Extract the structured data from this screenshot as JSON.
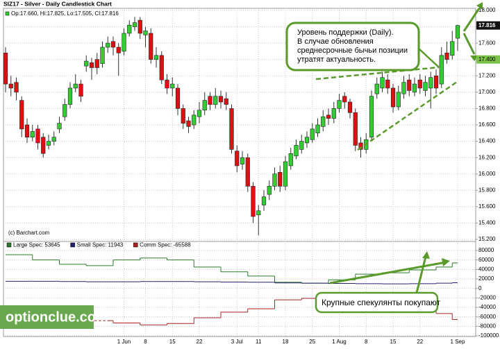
{
  "chart_data": [
    {
      "type": "candlestick",
      "title": "SIZ17 - Silver - Daily Candlestick Chart",
      "subtitle": "Op:17.660, Hi:17.825, Lo:17.505, Cl:17.816",
      "source": "(c) Barchart.com",
      "categories": [
        null,
        null,
        null,
        null,
        null,
        null,
        null,
        null,
        null,
        null,
        null,
        null,
        null,
        null,
        null,
        null,
        null,
        null,
        null,
        null,
        null,
        null,
        "1 Jun",
        null,
        null,
        null,
        "8",
        null,
        null,
        null,
        null,
        "15",
        null,
        null,
        null,
        null,
        "22",
        null,
        null,
        null,
        null,
        null,
        null,
        "3 Jul",
        null,
        null,
        null,
        "11",
        null,
        null,
        null,
        null,
        "18",
        null,
        null,
        null,
        null,
        "25",
        null,
        null,
        null,
        null,
        "1 Aug",
        null,
        null,
        null,
        null,
        "8",
        null,
        null,
        null,
        null,
        "15",
        null,
        null,
        null,
        null,
        "22",
        null,
        null,
        null,
        null,
        null,
        null,
        "1 Sep"
      ],
      "open": [
        17.48,
        17.1,
        17.12,
        16.9,
        16.6,
        16.45,
        16.55,
        16.45,
        16.35,
        16.4,
        16.55,
        16.7,
        16.85,
        17.05,
        17.1,
        17.32,
        17.36,
        17.4,
        17.35,
        17.55,
        17.62,
        17.55,
        17.5,
        17.72,
        17.8,
        17.88,
        17.7,
        17.72,
        17.4,
        17.45,
        17.15,
        17.05,
        17.05,
        16.8,
        16.65,
        16.6,
        16.7,
        16.78,
        16.95,
        16.85,
        16.95,
        16.92,
        16.8,
        16.28,
        16.12,
        16.2,
        15.85,
        15.5,
        15.62,
        15.75,
        15.85,
        16.02,
        15.85,
        16.1,
        16.22,
        16.3,
        16.38,
        16.42,
        16.5,
        16.58,
        16.72,
        16.68,
        16.8,
        16.95,
        16.88,
        16.75,
        16.38,
        16.3,
        16.45,
        16.98,
        17.05,
        17.15,
        17.05,
        16.82,
        16.98,
        17.15,
        17.0,
        17.15,
        17.02,
        17.05,
        17.2,
        17.1,
        17.48,
        17.45,
        17.66
      ],
      "high": [
        17.55,
        17.2,
        17.18,
        16.95,
        16.68,
        16.6,
        16.6,
        16.5,
        16.48,
        16.52,
        16.7,
        16.92,
        17.12,
        17.22,
        17.15,
        17.45,
        17.42,
        17.48,
        17.62,
        17.68,
        17.68,
        17.6,
        17.78,
        17.88,
        17.92,
        17.92,
        17.8,
        17.78,
        17.55,
        17.5,
        17.22,
        17.18,
        17.1,
        16.85,
        16.7,
        16.78,
        16.88,
        17.0,
        17.0,
        17.05,
        17.02,
        17.0,
        16.85,
        16.35,
        16.28,
        16.25,
        15.9,
        15.62,
        15.8,
        15.92,
        16.08,
        16.1,
        16.22,
        16.32,
        16.42,
        16.48,
        16.52,
        16.62,
        16.68,
        16.78,
        16.8,
        16.88,
        16.98,
        17.0,
        16.92,
        16.8,
        16.45,
        16.5,
        17.02,
        17.18,
        17.25,
        17.22,
        17.1,
        17.08,
        17.2,
        17.22,
        17.18,
        17.22,
        17.2,
        17.25,
        17.28,
        17.55,
        17.62,
        17.75,
        17.825
      ],
      "low": [
        17.0,
        16.95,
        16.9,
        16.45,
        16.38,
        16.4,
        16.3,
        16.2,
        16.3,
        16.35,
        16.5,
        16.65,
        16.8,
        17.0,
        16.88,
        17.25,
        17.15,
        17.22,
        17.3,
        17.48,
        17.45,
        17.2,
        17.45,
        17.68,
        17.75,
        17.65,
        17.55,
        17.35,
        17.3,
        17.1,
        16.98,
        16.95,
        16.72,
        16.55,
        16.5,
        16.55,
        16.62,
        16.72,
        16.78,
        16.8,
        16.8,
        16.78,
        16.25,
        16.02,
        16.05,
        15.78,
        15.4,
        15.25,
        15.55,
        15.68,
        15.8,
        15.78,
        15.8,
        16.05,
        16.18,
        16.25,
        16.32,
        16.38,
        16.45,
        16.52,
        16.6,
        16.62,
        16.75,
        16.8,
        16.68,
        16.28,
        16.2,
        16.25,
        16.4,
        16.92,
        17.0,
        16.98,
        16.75,
        16.78,
        16.92,
        16.95,
        16.95,
        16.98,
        16.95,
        16.8,
        16.98,
        17.05,
        17.35,
        17.4,
        17.505
      ],
      "close": [
        17.1,
        17.05,
        17.0,
        16.55,
        16.45,
        16.52,
        16.38,
        16.25,
        16.4,
        16.45,
        16.62,
        16.85,
        17.05,
        17.1,
        16.95,
        17.38,
        17.3,
        17.3,
        17.55,
        17.6,
        17.55,
        17.48,
        17.72,
        17.82,
        17.85,
        17.72,
        17.75,
        17.4,
        17.45,
        17.15,
        17.05,
        17.1,
        16.8,
        16.62,
        16.58,
        16.72,
        16.78,
        16.9,
        16.85,
        16.95,
        16.88,
        16.85,
        16.3,
        16.1,
        16.2,
        15.85,
        15.48,
        15.55,
        15.72,
        15.85,
        16.0,
        15.85,
        16.15,
        16.25,
        16.35,
        16.4,
        16.45,
        16.55,
        16.6,
        16.7,
        16.68,
        16.8,
        16.9,
        16.88,
        16.75,
        16.35,
        16.3,
        16.42,
        16.95,
        17.1,
        17.18,
        17.05,
        16.82,
        17.0,
        17.12,
        17.02,
        17.1,
        17.05,
        17.12,
        17.18,
        17.05,
        17.45,
        17.4,
        17.62,
        17.816
      ],
      "up_color": "#33cc33",
      "down_color": "#dd1111",
      "ylim": [
        15.2,
        18.0
      ],
      "yticks": [
        {
          "value": 18.0,
          "label": "18.000"
        },
        {
          "value": 17.8,
          "label": "17.800"
        },
        {
          "value": 17.6,
          "label": "17.600"
        },
        {
          "value": 17.4,
          "label": "17.400"
        },
        {
          "value": 17.2,
          "label": "17.200"
        },
        {
          "value": 17.0,
          "label": "17.000"
        },
        {
          "value": 16.8,
          "label": "16.800"
        },
        {
          "value": 16.6,
          "label": "16.600"
        },
        {
          "value": 16.4,
          "label": "16.400"
        },
        {
          "value": 16.2,
          "label": "16.200"
        },
        {
          "value": 16.0,
          "label": "16.000"
        },
        {
          "value": 15.8,
          "label": "15.800"
        },
        {
          "value": 15.6,
          "label": "15.600"
        },
        {
          "value": 15.4,
          "label": "15.400"
        },
        {
          "value": 15.2,
          "label": "15.200"
        }
      ],
      "grid": true,
      "last_price": 17.816,
      "support_level": 17.4,
      "annotations": [
        {
          "lines": [
            "Уровень поддержки (Daily).",
            "В случае обновления",
            "среднесрочные бычьи позиции",
            "утратят актуальность."
          ]
        }
      ]
    },
    {
      "type": "step",
      "x": [
        0,
        5,
        10,
        15,
        20,
        25,
        30,
        35,
        40,
        45,
        50,
        55,
        60,
        65,
        70,
        75,
        80,
        83
      ],
      "series": [
        {
          "name": "Large Spec: 53645",
          "color": "#2a7a2a",
          "values": [
            71000,
            60000,
            51000,
            48000,
            60000,
            64000,
            60000,
            45000,
            35000,
            26000,
            13000,
            11000,
            18000,
            30000,
            33000,
            39000,
            45000,
            53645
          ]
        },
        {
          "name": "Small Spec: 11943",
          "color": "#22226e",
          "values": [
            15000,
            15000,
            14500,
            14000,
            14000,
            14500,
            14500,
            14000,
            13500,
            13000,
            11500,
            11000,
            10500,
            10000,
            9500,
            10000,
            11000,
            11943
          ]
        },
        {
          "name": "Comm Spec: -65588",
          "color": "#aa2222",
          "values": [
            -70000,
            -72000,
            -70000,
            -68000,
            -73000,
            -77000,
            -74000,
            -62000,
            -50000,
            -43000,
            -24000,
            -21000,
            -24000,
            -36000,
            -38000,
            -43000,
            -53000,
            -65588
          ]
        }
      ],
      "ylim": [
        -100000,
        80000
      ],
      "yticks": [
        80000,
        60000,
        40000,
        20000,
        0,
        -20000,
        -40000,
        -60000,
        -80000,
        -100000
      ],
      "grid": true,
      "annotation": "Крупные спекулянты покупают"
    }
  ],
  "watermark": "optionclue.com"
}
